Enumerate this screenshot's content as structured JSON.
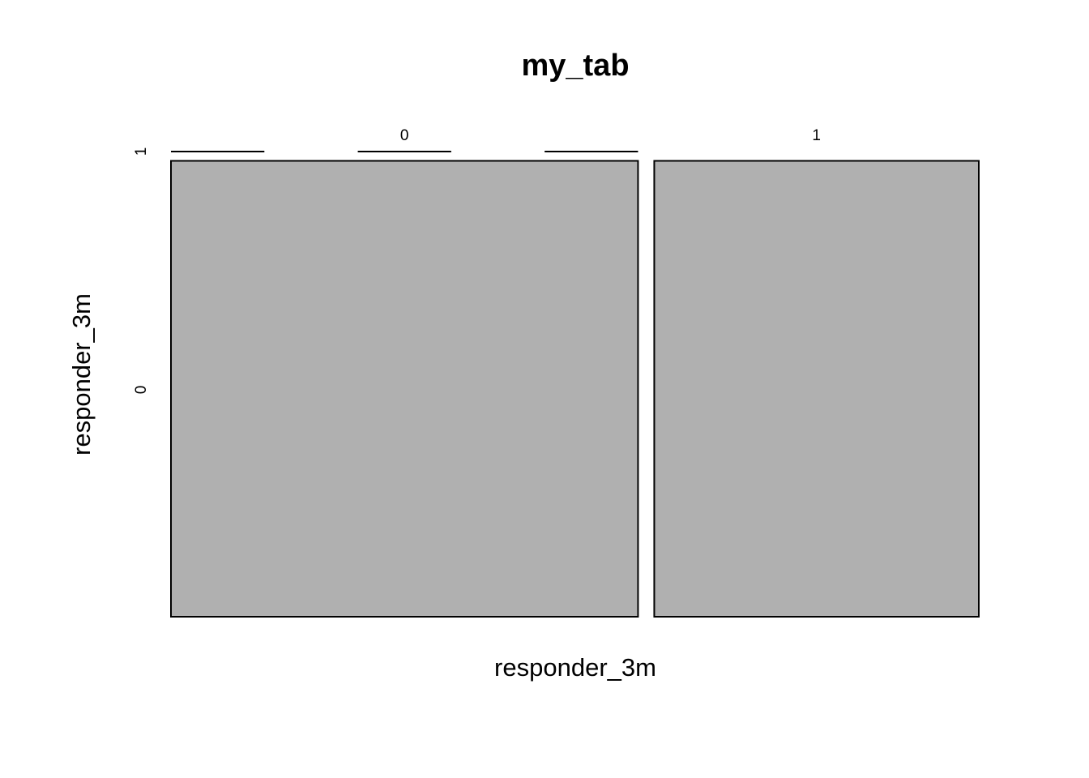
{
  "chart_data": {
    "type": "mosaic",
    "title": "my_tab",
    "xlabel": "responder_3m",
    "ylabel": "responder_3m",
    "x_categories": [
      "0",
      "1"
    ],
    "y_categories": [
      "0",
      "1"
    ],
    "counts": [
      {
        "x": "0",
        "y": "0",
        "proportion_of_column": 0.98,
        "relative_column_width": 0.59
      },
      {
        "x": "0",
        "y": "1",
        "proportion_of_column": 0.0,
        "relative_column_width": 0.59
      },
      {
        "x": "1",
        "y": "0",
        "proportion_of_column": 0.0,
        "relative_column_width": 0.41
      },
      {
        "x": "1",
        "y": "1",
        "proportion_of_column": 0.98,
        "relative_column_width": 0.41
      }
    ],
    "column_widths": [
      0.59,
      0.41
    ],
    "fill_color": "#b0b0b0",
    "border_color": "#000000"
  }
}
